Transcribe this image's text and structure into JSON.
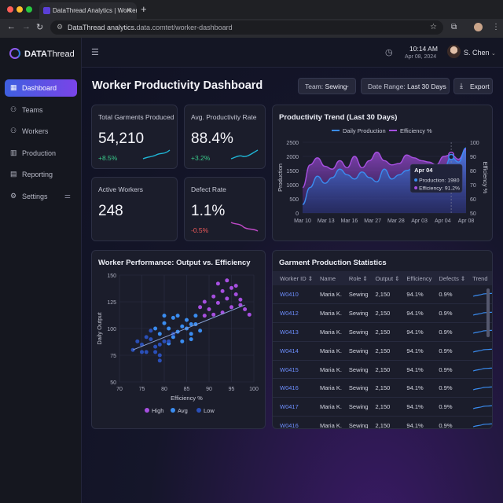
{
  "browser": {
    "tab_title": "DataThread Analytics | Worker ...",
    "tab_close": "✕",
    "new_tab": "+",
    "url_domain": "DataThread analytics.",
    "url_rest": "data.comtet/worker-dashboard",
    "colors": {
      "close": "#ff5f57",
      "minimize": "#febc2e",
      "maximize": "#28c840"
    }
  },
  "brand": {
    "name_bold": "DATA",
    "name_light": "Thread",
    "accent": "#8f5bf0"
  },
  "sidebar": {
    "items": [
      {
        "label": "Dashboard",
        "icon": "grid-icon",
        "glyph": "▦",
        "active": true
      },
      {
        "label": "Teams",
        "icon": "people-icon",
        "glyph": "⚇"
      },
      {
        "label": "Workers",
        "icon": "people-icon",
        "glyph": "⚇"
      },
      {
        "label": "Production",
        "icon": "chart-icon",
        "glyph": "▥"
      },
      {
        "label": "Reporting",
        "icon": "document-icon",
        "glyph": "▤"
      },
      {
        "label": "Settings",
        "icon": "gear-icon",
        "glyph": "⚙"
      }
    ]
  },
  "topbar": {
    "time": "10:14 AM",
    "date": "Apr 08, 2024",
    "user": "S. Chen"
  },
  "page": {
    "title": "Worker Productivity Dashboard",
    "export_label": "Export"
  },
  "filters": {
    "team_label": "Team:",
    "team_value": "Sewing",
    "range_label": "Date Range:",
    "range_value": "Last 30 Days"
  },
  "kpis": [
    {
      "label": "Total Garments Produced",
      "value": "54,210",
      "delta": "+8.5%",
      "trend": "up",
      "color": "#1fb6d6"
    },
    {
      "label": "Avg. Productivity Rate",
      "value": "88.4%",
      "delta": "+3.2%",
      "trend": "up",
      "color": "#1fb6d6"
    },
    {
      "label": "Active Workers",
      "value": "248",
      "delta": "",
      "trend": "none",
      "color": "#1fb6d6"
    },
    {
      "label": "Defect Rate",
      "value": "1.1%",
      "delta": "-0.5%",
      "trend": "down",
      "color": "#c04ac8"
    }
  ],
  "trend_card": {
    "title": "Productivity Trend (Last 30 Days)"
  },
  "scatter_card": {
    "title": "Worker Performance: Output vs. Efficiency"
  },
  "table_card": {
    "title": "Garment Production Statistics",
    "columns": [
      "Worker ID ⇕",
      "Name",
      "Role ⇕",
      "Output ⇕",
      "Efficiency",
      "Defects ⇕",
      "Trend"
    ],
    "rows": [
      {
        "id": "W0410",
        "name": "Maria K.",
        "role": "Sewing",
        "output": "2,150",
        "eff": "94.1%",
        "defects": "0.9%"
      },
      {
        "id": "W0412",
        "name": "Maria K.",
        "role": "Sewing",
        "output": "2,150",
        "eff": "94.1%",
        "defects": "0.9%"
      },
      {
        "id": "W0413",
        "name": "Maria K.",
        "role": "Sewing",
        "output": "2,150",
        "eff": "94.1%",
        "defects": "0.9%"
      },
      {
        "id": "W0414",
        "name": "Maria K.",
        "role": "Sewing",
        "output": "2,150",
        "eff": "94.1%",
        "defects": "0.9%"
      },
      {
        "id": "W0415",
        "name": "Maria K.",
        "role": "Sewing",
        "output": "2,150",
        "eff": "94.1%",
        "defects": "0.9%"
      },
      {
        "id": "W0416",
        "name": "Maria K.",
        "role": "Sewing",
        "output": "2,150",
        "eff": "94.1%",
        "defects": "0.9%"
      },
      {
        "id": "W0417",
        "name": "Maria K.",
        "role": "Sewing",
        "output": "2,150",
        "eff": "94.1%",
        "defects": "0.9%"
      },
      {
        "id": "W0416",
        "name": "Maria K.",
        "role": "Sewing",
        "output": "2,150",
        "eff": "94.1%",
        "defects": "0.9%"
      }
    ]
  },
  "chart_data": [
    {
      "type": "line",
      "title": "Productivity Trend (Last 30 Days)",
      "xlabel": "",
      "ylabel": "Production",
      "y2label": "Efficiency %",
      "x_ticks": [
        "Mar 10",
        "Mar 13",
        "Mar 16",
        "Mar 27",
        "Mar 28",
        "Apr 03",
        "Apr 04",
        "Apr 08"
      ],
      "ylim": [
        0,
        2500
      ],
      "y_ticks": [
        0,
        500,
        1000,
        1500,
        2000,
        2500
      ],
      "y2lim": [
        50,
        100
      ],
      "y2_ticks": [
        50,
        60,
        70,
        80,
        90,
        100
      ],
      "legend_position": "top",
      "series": [
        {
          "name": "Daily Production",
          "axis": "left",
          "color": "#3a8cf0",
          "values": [
            300,
            900,
            1300,
            1050,
            1250,
            1550,
            1350,
            1200,
            1450,
            1250,
            1100,
            1550,
            1200,
            1350,
            1500,
            1600,
            1300,
            1450,
            1200,
            1550,
            1980,
            1800,
            2300
          ]
        },
        {
          "name": "Efficiency %",
          "axis": "right",
          "color": "#a64fe0",
          "values": [
            68,
            84,
            89,
            83,
            81,
            87,
            82,
            90,
            82,
            87,
            93,
            87,
            84,
            85,
            91,
            89,
            87,
            86,
            84,
            90,
            91.2,
            88,
            95
          ]
        }
      ],
      "tooltip": {
        "title": "Apr 04",
        "lines": [
          "Production: 1980",
          "Efficiency: 91.2%"
        ]
      }
    },
    {
      "type": "scatter",
      "title": "Worker Performance: Output vs. Efficiency",
      "xlabel": "Efficiency %",
      "ylabel": "Daily Output",
      "xlim": [
        70,
        100
      ],
      "ylim": [
        50,
        150
      ],
      "x_ticks": [
        70,
        75,
        80,
        85,
        90,
        95,
        100
      ],
      "y_ticks": [
        50,
        75,
        100,
        125,
        150
      ],
      "legend_position": "bottom",
      "series": [
        {
          "name": "High",
          "color": "#a64fe0",
          "points": [
            [
              88,
              120
            ],
            [
              89,
              125
            ],
            [
              90,
              118
            ],
            [
              91,
              130
            ],
            [
              92,
              124
            ],
            [
              93,
              135
            ],
            [
              94,
              128
            ],
            [
              95,
              138
            ],
            [
              96,
              132
            ],
            [
              93,
              115
            ],
            [
              95,
              120
            ],
            [
              97,
              127
            ],
            [
              98,
              118
            ],
            [
              96,
              140
            ],
            [
              92,
              142
            ],
            [
              94,
              145
            ],
            [
              91,
              113
            ],
            [
              97,
              122
            ],
            [
              99,
              113
            ],
            [
              89,
              112
            ]
          ]
        },
        {
          "name": "Avg",
          "color": "#3a8cf0",
          "points": [
            [
              80,
              105
            ],
            [
              81,
              100
            ],
            [
              82,
              110
            ],
            [
              83,
              97
            ],
            [
              84,
              102
            ],
            [
              85,
              108
            ],
            [
              86,
              95
            ],
            [
              87,
              104
            ],
            [
              88,
              98
            ],
            [
              83,
              112
            ],
            [
              86,
              90
            ],
            [
              84,
              88
            ],
            [
              79,
              95
            ],
            [
              85,
              100
            ],
            [
              82,
              92
            ],
            [
              87,
              112
            ],
            [
              78,
              100
            ],
            [
              81,
              86
            ],
            [
              80,
              112
            ],
            [
              86,
              104
            ]
          ]
        },
        {
          "name": "Low",
          "color": "#2a4fb8",
          "points": [
            [
              73,
              80
            ],
            [
              75,
              85
            ],
            [
              76,
              78
            ],
            [
              77,
              90
            ],
            [
              78,
              83
            ],
            [
              79,
              75
            ],
            [
              80,
              88
            ],
            [
              76,
              92
            ],
            [
              74,
              88
            ],
            [
              78,
              78
            ],
            [
              77,
              98
            ],
            [
              75,
              78
            ],
            [
              79,
              85
            ],
            [
              81,
              88
            ],
            [
              79,
              70
            ],
            [
              82,
              95
            ]
          ]
        }
      ],
      "trendline": {
        "from": [
          73,
          80
        ],
        "to": [
          98,
          122
        ],
        "color": "#8aa2d8"
      }
    }
  ]
}
